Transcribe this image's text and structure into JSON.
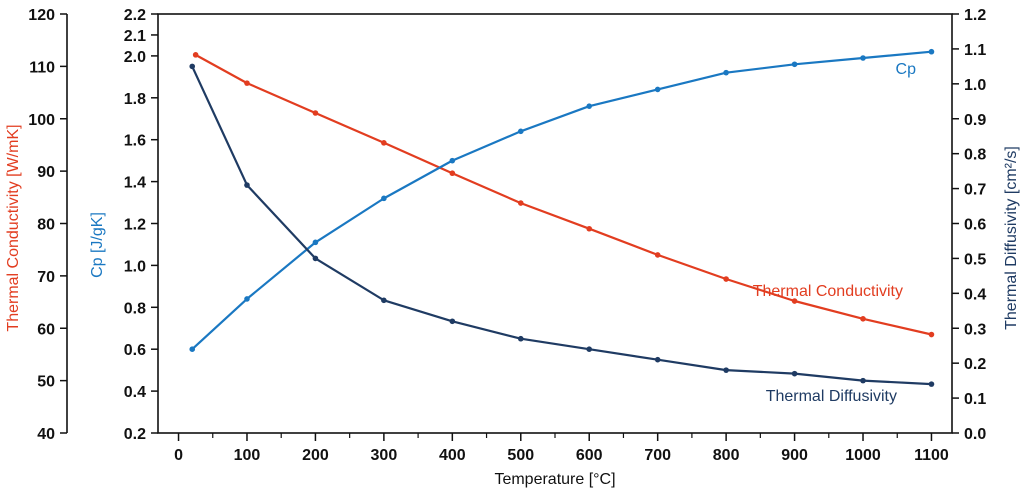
{
  "chart_data": {
    "type": "line",
    "xlabel": "Temperature [°C]",
    "x_ticks": [
      0,
      100,
      200,
      300,
      400,
      500,
      600,
      700,
      800,
      900,
      1000,
      1100
    ],
    "xlim": [
      -30,
      1130
    ],
    "axes": [
      {
        "id": "k",
        "label": "Thermal Conductivity [W/mK]",
        "color": "#e23d20",
        "range": [
          40,
          120
        ],
        "ticks": [
          40,
          50,
          60,
          70,
          80,
          90,
          100,
          110,
          120
        ],
        "decimals": 0
      },
      {
        "id": "cp",
        "label": "Cp [J/gK]",
        "color": "#1a78c2",
        "range": [
          0.2,
          2.2
        ],
        "ticks": [
          0.2,
          0.4,
          0.6,
          0.8,
          1.0,
          1.2,
          1.4,
          1.6,
          1.8,
          2.0,
          2.1,
          2.2
        ],
        "decimals": 1
      },
      {
        "id": "diff",
        "label": "Thermal Diffusivity [cm²/s]",
        "color": "#1f3b63",
        "range": [
          0,
          1.2
        ],
        "ticks": [
          0,
          0.1,
          0.2,
          0.3,
          0.4,
          0.5,
          0.6,
          0.7,
          0.8,
          0.9,
          1.0,
          1.1,
          1.2
        ],
        "decimals": 1
      }
    ],
    "series": [
      {
        "name": "Thermal Conductivity",
        "axis": "k",
        "color": "#e23d20",
        "x": [
          25,
          100,
          200,
          300,
          400,
          500,
          600,
          700,
          800,
          900,
          1000,
          1100
        ],
        "values": [
          112.2,
          106.8,
          101.1,
          95.4,
          89.6,
          83.9,
          79.0,
          74.0,
          69.4,
          65.2,
          61.8,
          58.8
        ]
      },
      {
        "name": "Cp",
        "axis": "cp",
        "color": "#1a78c2",
        "x": [
          20,
          100,
          200,
          300,
          400,
          500,
          600,
          700,
          800,
          900,
          1000,
          1100
        ],
        "values": [
          0.6,
          0.84,
          1.11,
          1.32,
          1.5,
          1.64,
          1.76,
          1.84,
          1.92,
          1.96,
          1.99,
          2.02
        ]
      },
      {
        "name": "Thermal Diffusivity",
        "axis": "diff",
        "color": "#1f3b63",
        "x": [
          20,
          100,
          200,
          300,
          400,
          500,
          600,
          700,
          800,
          900,
          1000,
          1100
        ],
        "values": [
          1.05,
          0.71,
          0.5,
          0.38,
          0.32,
          0.27,
          0.24,
          0.21,
          0.18,
          0.17,
          0.15,
          0.14
        ]
      }
    ]
  }
}
